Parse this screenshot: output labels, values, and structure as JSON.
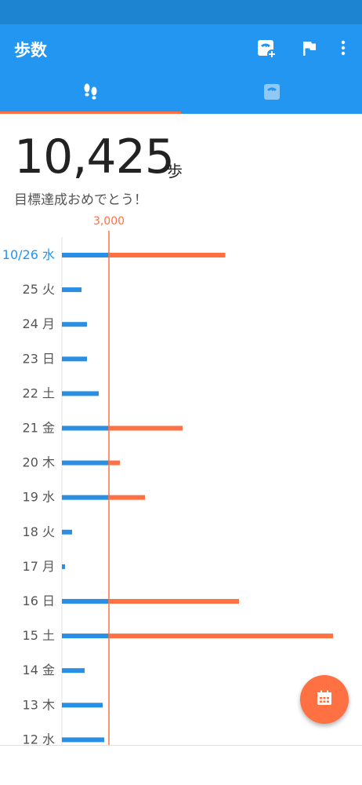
{
  "app_bar": {
    "title": "歩数",
    "icons": [
      "scale-add-icon",
      "flag-icon",
      "more-vert-icon"
    ]
  },
  "tabs": [
    {
      "icon": "footsteps-icon",
      "selected": true
    },
    {
      "icon": "scale-icon",
      "selected": false
    }
  ],
  "summary": {
    "steps": "10,425",
    "unit": "歩",
    "message": "目標達成おめでとう！"
  },
  "colors": {
    "primary": "#2296f0",
    "status_bar": "#1d84d2",
    "accent": "#ff7043",
    "bar_blue": "#2a8fe3",
    "today_label": "#2296f0"
  },
  "chart_data": {
    "type": "bar",
    "orientation": "horizontal",
    "goal": 3000,
    "goal_label": "3,000",
    "categories": [
      "10/26 水",
      "25 火",
      "24 月",
      "23 日",
      "22 土",
      "21 金",
      "20 木",
      "19 水",
      "18 火",
      "17 月",
      "16 日",
      "15 土",
      "14 金",
      "13 木",
      "12 水"
    ],
    "values": [
      10425,
      1250,
      1600,
      1600,
      2350,
      7700,
      3700,
      5300,
      650,
      200,
      11300,
      17300,
      1450,
      2600,
      2700
    ],
    "xlim": [
      0,
      18000
    ]
  },
  "fab": {
    "icon": "calendar-icon"
  }
}
